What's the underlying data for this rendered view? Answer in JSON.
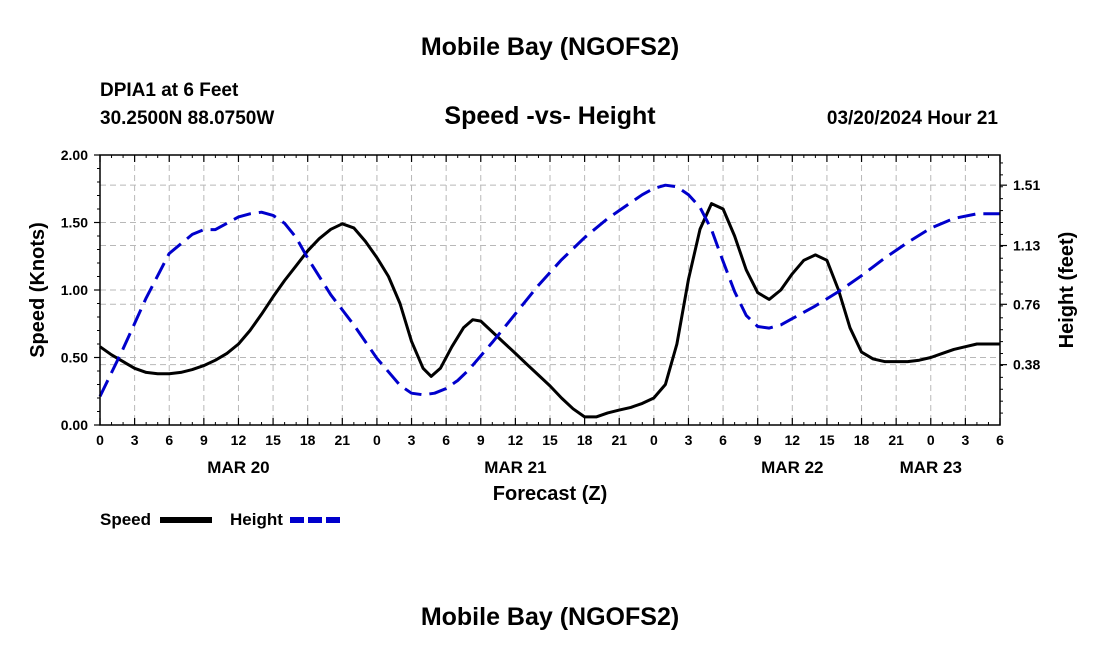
{
  "page": {
    "title": "Mobile Bay (NGOFS2)",
    "footer_title": "Mobile Bay (NGOFS2)",
    "station": "DPIA1 at 6 Feet",
    "coords": "30.2500N  88.0750W",
    "chart_heading": "Speed -vs- Height",
    "forecast_time": "03/20/2024 Hour 21"
  },
  "chart_data": {
    "type": "line",
    "xlabel": "Forecast (Z)",
    "ylabel": "Speed (Knots)",
    "ylabel_right": "Height (feet)",
    "x_unit": "hours from 2024-03-20 00Z",
    "xlim": [
      0,
      78
    ],
    "ylim": [
      0,
      2.0
    ],
    "yticks": [
      "0.00",
      "0.50",
      "1.00",
      "1.50",
      "2.00"
    ],
    "yticks_right": [
      "0.38",
      "0.76",
      "1.13",
      "1.51"
    ],
    "x_tick_labels": [
      "0",
      "3",
      "6",
      "9",
      "12",
      "15",
      "18",
      "21",
      "0",
      "3",
      "6",
      "9",
      "12",
      "15",
      "18",
      "21",
      "0",
      "3",
      "6",
      "9",
      "12",
      "15",
      "18",
      "21",
      "0",
      "3",
      "6"
    ],
    "date_labels": [
      {
        "label": "MAR 20",
        "x": 12
      },
      {
        "label": "MAR 21",
        "x": 36
      },
      {
        "label": "MAR 22",
        "x": 60
      },
      {
        "label": "MAR 23",
        "x": 72
      }
    ],
    "grid": true,
    "series": [
      {
        "name": "Speed",
        "color": "#000000",
        "dash": "solid",
        "points": [
          [
            0,
            0.58
          ],
          [
            1,
            0.52
          ],
          [
            2,
            0.47
          ],
          [
            3,
            0.42
          ],
          [
            4,
            0.39
          ],
          [
            5,
            0.38
          ],
          [
            6,
            0.38
          ],
          [
            7,
            0.39
          ],
          [
            8,
            0.41
          ],
          [
            9,
            0.44
          ],
          [
            10,
            0.48
          ],
          [
            11,
            0.53
          ],
          [
            12,
            0.6
          ],
          [
            13,
            0.7
          ],
          [
            14,
            0.82
          ],
          [
            15,
            0.95
          ],
          [
            16,
            1.07
          ],
          [
            17,
            1.18
          ],
          [
            18,
            1.29
          ],
          [
            19,
            1.38
          ],
          [
            20,
            1.45
          ],
          [
            21,
            1.49
          ],
          [
            22,
            1.46
          ],
          [
            23,
            1.36
          ],
          [
            24,
            1.24
          ],
          [
            25,
            1.1
          ],
          [
            26,
            0.9
          ],
          [
            27,
            0.62
          ],
          [
            28,
            0.42
          ],
          [
            28.7,
            0.36
          ],
          [
            29.5,
            0.42
          ],
          [
            30.5,
            0.58
          ],
          [
            31.5,
            0.72
          ],
          [
            32.3,
            0.78
          ],
          [
            33,
            0.77
          ],
          [
            34,
            0.69
          ],
          [
            35,
            0.61
          ],
          [
            36,
            0.53
          ],
          [
            37,
            0.45
          ],
          [
            38,
            0.37
          ],
          [
            39,
            0.29
          ],
          [
            40,
            0.2
          ],
          [
            41,
            0.12
          ],
          [
            42,
            0.06
          ],
          [
            43,
            0.06
          ],
          [
            44,
            0.09
          ],
          [
            45,
            0.11
          ],
          [
            46,
            0.13
          ],
          [
            47,
            0.16
          ],
          [
            48,
            0.2
          ],
          [
            49,
            0.3
          ],
          [
            50,
            0.6
          ],
          [
            51,
            1.08
          ],
          [
            52,
            1.45
          ],
          [
            53,
            1.64
          ],
          [
            54,
            1.6
          ],
          [
            55,
            1.4
          ],
          [
            56,
            1.15
          ],
          [
            57,
            0.98
          ],
          [
            58,
            0.93
          ],
          [
            59,
            1.0
          ],
          [
            60,
            1.12
          ],
          [
            61,
            1.22
          ],
          [
            62,
            1.26
          ],
          [
            63,
            1.22
          ],
          [
            64,
            1.0
          ],
          [
            65,
            0.72
          ],
          [
            66,
            0.54
          ],
          [
            67,
            0.49
          ],
          [
            68,
            0.47
          ],
          [
            69,
            0.47
          ],
          [
            70,
            0.47
          ],
          [
            71,
            0.48
          ],
          [
            72,
            0.5
          ],
          [
            73,
            0.53
          ],
          [
            74,
            0.56
          ],
          [
            75,
            0.58
          ],
          [
            76,
            0.6
          ],
          [
            78,
            0.6
          ]
        ]
      },
      {
        "name": "Height",
        "color": "#0000cc",
        "dash": "dashed",
        "points": [
          [
            0,
            0.18
          ],
          [
            2,
            0.48
          ],
          [
            4,
            0.8
          ],
          [
            6,
            1.08
          ],
          [
            8,
            1.2
          ],
          [
            9,
            1.23
          ],
          [
            10,
            1.23
          ],
          [
            12,
            1.31
          ],
          [
            13,
            1.33
          ],
          [
            14,
            1.34
          ],
          [
            15,
            1.32
          ],
          [
            16,
            1.27
          ],
          [
            17,
            1.18
          ],
          [
            18,
            1.05
          ],
          [
            20,
            0.82
          ],
          [
            22,
            0.63
          ],
          [
            24,
            0.42
          ],
          [
            26,
            0.25
          ],
          [
            27,
            0.2
          ],
          [
            28,
            0.19
          ],
          [
            29,
            0.2
          ],
          [
            30,
            0.23
          ],
          [
            31,
            0.28
          ],
          [
            32,
            0.35
          ],
          [
            34,
            0.52
          ],
          [
            36,
            0.7
          ],
          [
            38,
            0.88
          ],
          [
            40,
            1.04
          ],
          [
            42,
            1.18
          ],
          [
            44,
            1.3
          ],
          [
            46,
            1.4
          ],
          [
            47,
            1.45
          ],
          [
            48,
            1.49
          ],
          [
            49,
            1.51
          ],
          [
            50,
            1.5
          ],
          [
            51,
            1.45
          ],
          [
            52,
            1.37
          ],
          [
            53,
            1.23
          ],
          [
            54,
            1.03
          ],
          [
            55,
            0.84
          ],
          [
            56,
            0.69
          ],
          [
            57,
            0.62
          ],
          [
            58,
            0.61
          ],
          [
            59,
            0.63
          ],
          [
            60,
            0.67
          ],
          [
            62,
            0.75
          ],
          [
            64,
            0.84
          ],
          [
            66,
            0.94
          ],
          [
            68,
            1.05
          ],
          [
            70,
            1.15
          ],
          [
            72,
            1.24
          ],
          [
            74,
            1.3
          ],
          [
            76,
            1.33
          ],
          [
            78,
            1.33
          ]
        ]
      }
    ],
    "height_range": [
      0.0,
      1.7
    ]
  }
}
